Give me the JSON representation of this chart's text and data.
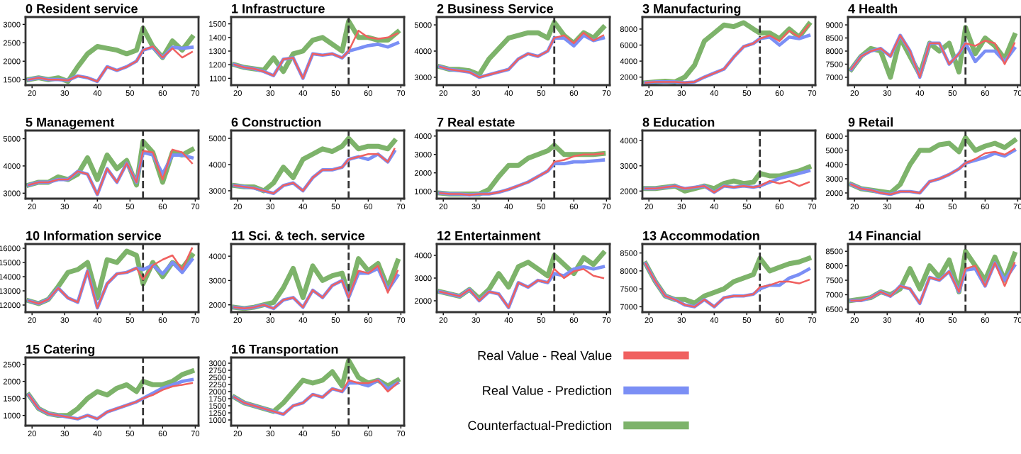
{
  "chart_data": [
    {
      "type": "line",
      "title": "0 Resident service",
      "x": [
        19,
        22,
        25,
        28,
        31,
        34,
        37,
        40,
        43,
        46,
        49,
        52,
        54,
        57,
        60,
        63,
        66,
        69
      ],
      "xlim": [
        18,
        71
      ],
      "xticks": [
        20,
        30,
        40,
        50,
        60,
        70
      ],
      "ylim": [
        1350,
        3200
      ],
      "yticks": [
        1500,
        2000,
        2500,
        3000
      ],
      "ref_lines": [
        {
          "axis": "x",
          "value": 54,
          "color": "#333333",
          "line_style": "dashed"
        }
      ],
      "series": [
        {
          "color": "#f0605f",
          "values": [
            1500,
            1550,
            1500,
            1500,
            1480,
            1600,
            1550,
            1450,
            1850,
            1750,
            1850,
            2000,
            2300,
            2400,
            2100,
            2350,
            2100,
            2250
          ]
        },
        {
          "color": "#7b8ff5",
          "values": [
            1500,
            1550,
            1500,
            1500,
            1480,
            1600,
            1550,
            1450,
            1850,
            1750,
            1850,
            2000,
            2300,
            2380,
            2100,
            2380,
            2350,
            2380
          ]
        },
        {
          "color": "#7db36a",
          "values": [
            1500,
            1550,
            1500,
            1550,
            1450,
            1850,
            2200,
            2400,
            2350,
            2300,
            2200,
            2300,
            2900,
            2400,
            2100,
            2550,
            2300,
            2650
          ]
        }
      ]
    },
    {
      "type": "line",
      "title": "1 Infrastructure",
      "x": [
        19,
        22,
        25,
        28,
        31,
        34,
        37,
        40,
        43,
        46,
        49,
        52,
        54,
        57,
        60,
        63,
        66,
        69
      ],
      "xlim": [
        18,
        71
      ],
      "xticks": [
        20,
        30,
        40,
        50,
        60,
        70
      ],
      "ylim": [
        1050,
        1550
      ],
      "yticks": [
        1100,
        1200,
        1300,
        1400,
        1500
      ],
      "ref_lines": [
        {
          "axis": "x",
          "value": 54,
          "color": "#333333",
          "line_style": "dashed"
        }
      ],
      "series": [
        {
          "color": "#f0605f",
          "values": [
            1200,
            1180,
            1170,
            1150,
            1120,
            1240,
            1250,
            1100,
            1280,
            1270,
            1280,
            1250,
            1300,
            1450,
            1400,
            1390,
            1400,
            1430
          ]
        },
        {
          "color": "#7b8ff5",
          "values": [
            1200,
            1180,
            1170,
            1150,
            1120,
            1240,
            1250,
            1100,
            1280,
            1270,
            1280,
            1250,
            1300,
            1320,
            1340,
            1350,
            1330,
            1360
          ]
        },
        {
          "color": "#7db36a",
          "values": [
            1200,
            1180,
            1170,
            1160,
            1250,
            1150,
            1280,
            1300,
            1380,
            1400,
            1350,
            1300,
            1520,
            1400,
            1400,
            1380,
            1380,
            1440
          ]
        }
      ]
    },
    {
      "type": "line",
      "title": "2 Business Service",
      "x": [
        19,
        22,
        25,
        28,
        31,
        34,
        37,
        40,
        43,
        46,
        49,
        52,
        54,
        57,
        60,
        63,
        66,
        69
      ],
      "xlim": [
        18,
        71
      ],
      "xticks": [
        20,
        30,
        40,
        50,
        60,
        70
      ],
      "ylim": [
        2700,
        5300
      ],
      "yticks": [
        3000,
        4000,
        5000
      ],
      "ref_lines": [
        {
          "axis": "x",
          "value": 54,
          "color": "#333333",
          "line_style": "dashed"
        }
      ],
      "series": [
        {
          "color": "#f0605f",
          "values": [
            3400,
            3300,
            3250,
            3200,
            3000,
            3100,
            3200,
            3300,
            3700,
            3900,
            3800,
            4000,
            4500,
            4600,
            4300,
            4700,
            4400,
            4600
          ]
        },
        {
          "color": "#7b8ff5",
          "values": [
            3400,
            3300,
            3250,
            3200,
            3000,
            3100,
            3200,
            3300,
            3700,
            3900,
            3800,
            4000,
            4500,
            4500,
            4200,
            4600,
            4400,
            4500
          ]
        },
        {
          "color": "#7db36a",
          "values": [
            3400,
            3300,
            3300,
            3250,
            3100,
            3700,
            4100,
            4500,
            4600,
            4700,
            4700,
            4500,
            5100,
            4600,
            4300,
            4700,
            4500,
            4900
          ]
        }
      ]
    },
    {
      "type": "line",
      "title": "3 Manufacturing",
      "x": [
        19,
        22,
        25,
        28,
        31,
        34,
        37,
        40,
        43,
        46,
        49,
        52,
        54,
        57,
        60,
        63,
        66,
        69
      ],
      "xlim": [
        18,
        71
      ],
      "xticks": [
        20,
        30,
        40,
        50,
        60,
        70
      ],
      "ylim": [
        1000,
        9500
      ],
      "yticks": [
        2000,
        4000,
        6000,
        8000
      ],
      "ref_lines": [
        {
          "axis": "x",
          "value": 54,
          "color": "#333333",
          "line_style": "dashed"
        }
      ],
      "series": [
        {
          "color": "#f0605f",
          "values": [
            1300,
            1400,
            1400,
            1400,
            1300,
            1400,
            2000,
            2500,
            3000,
            4500,
            5800,
            6200,
            6800,
            7200,
            6500,
            7800,
            7000,
            8500
          ]
        },
        {
          "color": "#7b8ff5",
          "values": [
            1300,
            1400,
            1400,
            1400,
            1300,
            1400,
            2000,
            2500,
            3000,
            4500,
            5800,
            6200,
            6800,
            7000,
            6000,
            7000,
            6800,
            7200
          ]
        },
        {
          "color": "#7db36a",
          "values": [
            1300,
            1400,
            1500,
            1400,
            2000,
            3500,
            6500,
            7500,
            8500,
            8300,
            8800,
            8000,
            7500,
            7500,
            6800,
            8000,
            7000,
            8600
          ]
        }
      ]
    },
    {
      "type": "line",
      "title": "4 Health",
      "x": [
        19,
        22,
        25,
        28,
        31,
        34,
        37,
        40,
        43,
        46,
        49,
        52,
        54,
        57,
        60,
        63,
        66,
        69
      ],
      "xlim": [
        18,
        71
      ],
      "xticks": [
        20,
        30,
        40,
        50,
        60,
        70
      ],
      "ylim": [
        6700,
        9300
      ],
      "yticks": [
        7000,
        7500,
        8000,
        8500,
        9000
      ],
      "ref_lines": [
        {
          "axis": "x",
          "value": 54,
          "color": "#333333",
          "line_style": "dashed"
        }
      ],
      "series": [
        {
          "color": "#f0605f",
          "values": [
            7300,
            7800,
            8000,
            8100,
            7800,
            8600,
            8000,
            7000,
            8300,
            8300,
            7500,
            7900,
            8300,
            8200,
            8400,
            8300,
            7500,
            8300
          ]
        },
        {
          "color": "#7b8ff5",
          "values": [
            7300,
            7800,
            8000,
            8100,
            7800,
            8600,
            8000,
            7000,
            8300,
            8300,
            7500,
            7900,
            8300,
            7600,
            8000,
            8000,
            7600,
            8100
          ]
        },
        {
          "color": "#7db36a",
          "values": [
            7300,
            7800,
            8100,
            8000,
            7000,
            8500,
            7800,
            7100,
            8300,
            8000,
            8300,
            7200,
            8900,
            7900,
            8500,
            8200,
            7700,
            8600
          ]
        }
      ]
    },
    {
      "type": "line",
      "title": "5 Management",
      "x": [
        19,
        22,
        25,
        28,
        31,
        34,
        37,
        40,
        43,
        46,
        49,
        52,
        54,
        57,
        60,
        63,
        66,
        69
      ],
      "xlim": [
        18,
        71
      ],
      "xticks": [
        20,
        30,
        40,
        50,
        60,
        70
      ],
      "ylim": [
        2800,
        5300
      ],
      "yticks": [
        3000,
        4000,
        5000
      ],
      "ref_lines": [
        {
          "axis": "x",
          "value": 54,
          "color": "#333333",
          "line_style": "dashed"
        }
      ],
      "series": [
        {
          "color": "#f0605f",
          "values": [
            3300,
            3400,
            3400,
            3500,
            3500,
            3800,
            3700,
            2950,
            3900,
            3400,
            4100,
            3400,
            4550,
            4500,
            3500,
            4600,
            4500,
            4100
          ]
        },
        {
          "color": "#7b8ff5",
          "values": [
            3300,
            3400,
            3400,
            3500,
            3500,
            3800,
            3700,
            2950,
            3900,
            3400,
            4100,
            3400,
            4500,
            4400,
            3700,
            4400,
            4400,
            4300
          ]
        },
        {
          "color": "#7db36a",
          "values": [
            3300,
            3400,
            3400,
            3600,
            3500,
            3700,
            4300,
            3500,
            4400,
            3900,
            4200,
            3300,
            4900,
            4500,
            3400,
            4500,
            4400,
            4600
          ]
        }
      ]
    },
    {
      "type": "line",
      "title": "6 Construction",
      "x": [
        19,
        22,
        25,
        28,
        31,
        34,
        37,
        40,
        43,
        46,
        49,
        52,
        54,
        57,
        60,
        63,
        66,
        68
      ],
      "xlim": [
        18,
        71
      ],
      "xticks": [
        20,
        30,
        40,
        50,
        60,
        70
      ],
      "ylim": [
        2700,
        5300
      ],
      "yticks": [
        3000,
        4000,
        5000
      ],
      "ref_lines": [
        {
          "axis": "x",
          "value": 54,
          "color": "#333333",
          "line_style": "dashed"
        }
      ],
      "series": [
        {
          "color": "#f0605f",
          "values": [
            3200,
            3150,
            3100,
            3000,
            2900,
            3200,
            3300,
            3000,
            3500,
            3800,
            3800,
            3900,
            4200,
            4300,
            4400,
            4400,
            4100,
            4600
          ]
        },
        {
          "color": "#7b8ff5",
          "values": [
            3200,
            3150,
            3100,
            3000,
            2900,
            3200,
            3300,
            3000,
            3500,
            3800,
            3800,
            3900,
            4200,
            4300,
            4200,
            4400,
            4100,
            4500
          ]
        },
        {
          "color": "#7db36a",
          "values": [
            3200,
            3150,
            3150,
            3000,
            3300,
            3900,
            3500,
            4200,
            4400,
            4600,
            4500,
            4700,
            5000,
            4600,
            4700,
            4700,
            4600,
            4900
          ]
        }
      ]
    },
    {
      "type": "line",
      "title": "7 Real estate",
      "x": [
        19,
        22,
        25,
        28,
        31,
        34,
        37,
        40,
        43,
        46,
        49,
        52,
        54,
        57,
        60,
        63,
        66,
        69
      ],
      "xlim": [
        18,
        71
      ],
      "xticks": [
        20,
        30,
        40,
        50,
        60,
        70
      ],
      "ylim": [
        600,
        4300
      ],
      "yticks": [
        1000,
        2000,
        3000,
        4000
      ],
      "ref_lines": [
        {
          "axis": "x",
          "value": 54,
          "color": "#333333",
          "line_style": "dashed"
        }
      ],
      "series": [
        {
          "color": "#f0605f",
          "values": [
            900,
            850,
            850,
            800,
            850,
            850,
            950,
            1100,
            1300,
            1500,
            1800,
            2100,
            2600,
            2700,
            2900,
            3000,
            3000,
            3050
          ]
        },
        {
          "color": "#7b8ff5",
          "values": [
            900,
            850,
            850,
            800,
            850,
            850,
            950,
            1100,
            1300,
            1500,
            1800,
            2100,
            2500,
            2500,
            2600,
            2600,
            2650,
            2700
          ]
        },
        {
          "color": "#7db36a",
          "values": [
            900,
            850,
            850,
            850,
            850,
            1100,
            1800,
            2400,
            2400,
            2800,
            3000,
            3200,
            3500,
            3000,
            3000,
            3000,
            3000,
            3050
          ]
        }
      ]
    },
    {
      "type": "line",
      "title": "8 Education",
      "x": [
        19,
        22,
        25,
        28,
        31,
        34,
        37,
        40,
        43,
        46,
        49,
        52,
        54,
        57,
        60,
        63,
        66,
        69
      ],
      "xlim": [
        18,
        71
      ],
      "xticks": [
        20,
        30,
        40,
        50,
        60,
        70
      ],
      "ylim": [
        1700,
        4400
      ],
      "yticks": [
        2000,
        3000,
        4000
      ],
      "ref_lines": [
        {
          "axis": "x",
          "value": 54,
          "color": "#333333",
          "line_style": "dashed"
        }
      ],
      "series": [
        {
          "color": "#f0605f",
          "values": [
            2100,
            2100,
            2150,
            2200,
            2100,
            2150,
            2200,
            1950,
            2200,
            2150,
            2200,
            2150,
            2200,
            2400,
            2300,
            2400,
            2200,
            2350
          ]
        },
        {
          "color": "#7b8ff5",
          "values": [
            2100,
            2100,
            2150,
            2200,
            2100,
            2150,
            2200,
            1950,
            2200,
            2150,
            2200,
            2150,
            2200,
            2350,
            2500,
            2600,
            2700,
            2800
          ]
        },
        {
          "color": "#7db36a",
          "values": [
            2100,
            2100,
            2150,
            2200,
            2000,
            2100,
            2200,
            2100,
            2300,
            2400,
            2300,
            2350,
            2700,
            2600,
            2600,
            2700,
            2800,
            2950
          ]
        }
      ]
    },
    {
      "type": "line",
      "title": "9 Retail",
      "x": [
        19,
        22,
        25,
        28,
        31,
        34,
        37,
        40,
        43,
        46,
        49,
        52,
        54,
        57,
        60,
        63,
        66,
        69
      ],
      "xlim": [
        18,
        71
      ],
      "xticks": [
        20,
        30,
        40,
        50,
        60,
        70
      ],
      "ylim": [
        1600,
        6400
      ],
      "yticks": [
        2000,
        3000,
        4000,
        5000,
        6000
      ],
      "ref_lines": [
        {
          "axis": "x",
          "value": 54,
          "color": "#333333",
          "line_style": "dashed"
        }
      ],
      "series": [
        {
          "color": "#f0605f",
          "values": [
            2600,
            2300,
            2200,
            2000,
            1900,
            2100,
            2100,
            2000,
            2800,
            3000,
            3300,
            3700,
            4100,
            4400,
            4800,
            4900,
            4700,
            5100
          ]
        },
        {
          "color": "#7b8ff5",
          "values": [
            2600,
            2300,
            2200,
            2000,
            1900,
            2100,
            2100,
            2000,
            2800,
            3000,
            3300,
            3700,
            4100,
            4300,
            4500,
            4800,
            4600,
            5000
          ]
        },
        {
          "color": "#7db36a",
          "values": [
            2600,
            2300,
            2200,
            2100,
            2000,
            2600,
            4000,
            5000,
            5000,
            5400,
            5500,
            4900,
            5900,
            5000,
            5300,
            5500,
            5200,
            5700
          ]
        }
      ]
    },
    {
      "type": "line",
      "title": "10 Information service",
      "x": [
        19,
        22,
        25,
        28,
        31,
        34,
        37,
        40,
        43,
        46,
        49,
        52,
        54,
        57,
        60,
        63,
        66,
        69
      ],
      "xlim": [
        18,
        71
      ],
      "xticks": [
        20,
        30,
        40,
        50,
        60,
        70
      ],
      "ylim": [
        11500,
        16300
      ],
      "yticks": [
        12000,
        13000,
        14000,
        15000,
        16000
      ],
      "ref_lines": [
        {
          "axis": "x",
          "value": 54,
          "color": "#333333",
          "line_style": "dashed"
        }
      ],
      "series": [
        {
          "color": "#f0605f",
          "values": [
            12300,
            12100,
            12400,
            13200,
            12500,
            12200,
            14400,
            11800,
            13500,
            14200,
            14300,
            14600,
            13800,
            14800,
            15200,
            15500,
            14500,
            16000
          ]
        },
        {
          "color": "#7b8ff5",
          "values": [
            12300,
            12100,
            12400,
            13200,
            12500,
            12200,
            14400,
            11800,
            13500,
            14200,
            14300,
            14600,
            14500,
            14800,
            14200,
            15000,
            14300,
            15200
          ]
        },
        {
          "color": "#7db36a",
          "values": [
            12300,
            12100,
            12400,
            13300,
            14300,
            14500,
            15000,
            12500,
            15200,
            15000,
            15800,
            15500,
            13500,
            15000,
            14000,
            15000,
            14600,
            15500
          ]
        }
      ]
    },
    {
      "type": "line",
      "title": "11 Sci. & tech. service",
      "x": [
        19,
        22,
        25,
        28,
        31,
        34,
        37,
        40,
        43,
        46,
        49,
        52,
        54,
        57,
        60,
        63,
        66,
        69
      ],
      "xlim": [
        18,
        71
      ],
      "xticks": [
        20,
        30,
        40,
        50,
        60,
        70
      ],
      "ylim": [
        1700,
        4500
      ],
      "yticks": [
        2000,
        3000,
        4000
      ],
      "ref_lines": [
        {
          "axis": "x",
          "value": 54,
          "color": "#333333",
          "line_style": "dashed"
        }
      ],
      "series": [
        {
          "color": "#f0605f",
          "values": [
            1900,
            1850,
            1900,
            2000,
            1850,
            2200,
            2300,
            1900,
            2600,
            2300,
            2800,
            3000,
            2300,
            3400,
            3300,
            3600,
            2500,
            3400
          ]
        },
        {
          "color": "#7b8ff5",
          "values": [
            1900,
            1850,
            1900,
            2000,
            1850,
            2200,
            2300,
            1900,
            2600,
            2300,
            2800,
            3000,
            2300,
            3300,
            3300,
            3500,
            2600,
            3200
          ]
        },
        {
          "color": "#7db36a",
          "values": [
            1900,
            1850,
            1900,
            2000,
            2100,
            2700,
            3500,
            2300,
            3600,
            3000,
            3200,
            3300,
            2400,
            3900,
            3400,
            3700,
            2700,
            3800
          ]
        }
      ]
    },
    {
      "type": "line",
      "title": "12 Entertainment",
      "x": [
        19,
        22,
        25,
        28,
        31,
        34,
        37,
        40,
        43,
        46,
        49,
        52,
        54,
        57,
        60,
        63,
        66,
        69
      ],
      "xlim": [
        18,
        71
      ],
      "xticks": [
        20,
        30,
        40,
        50,
        60,
        70
      ],
      "ylim": [
        1500,
        4500
      ],
      "yticks": [
        2000,
        3000,
        4000
      ],
      "ref_lines": [
        {
          "axis": "x",
          "value": 54,
          "color": "#333333",
          "line_style": "dashed"
        }
      ],
      "series": [
        {
          "color": "#f0605f",
          "values": [
            2400,
            2300,
            2200,
            2500,
            2000,
            2400,
            2300,
            1700,
            2800,
            2600,
            2900,
            2800,
            3400,
            3000,
            3300,
            3400,
            3100,
            3000
          ]
        },
        {
          "color": "#7b8ff5",
          "values": [
            2400,
            2300,
            2200,
            2500,
            2000,
            2400,
            2300,
            1700,
            2800,
            2600,
            2900,
            2800,
            3200,
            3100,
            3400,
            3500,
            3400,
            3500
          ]
        },
        {
          "color": "#7db36a",
          "values": [
            2400,
            2300,
            2200,
            2500,
            2100,
            2500,
            3200,
            2600,
            3500,
            3700,
            3400,
            3100,
            4000,
            3600,
            3200,
            3900,
            3600,
            4100
          ]
        }
      ]
    },
    {
      "type": "line",
      "title": "13 Accommodation",
      "x": [
        19,
        22,
        25,
        28,
        31,
        34,
        37,
        40,
        43,
        46,
        49,
        52,
        54,
        57,
        60,
        63,
        66,
        69
      ],
      "xlim": [
        18,
        71
      ],
      "xticks": [
        20,
        30,
        40,
        50,
        60,
        70
      ],
      "ylim": [
        6850,
        8750
      ],
      "yticks": [
        7000,
        7500,
        8000,
        8500
      ],
      "ref_lines": [
        {
          "axis": "x",
          "value": 54,
          "color": "#333333",
          "line_style": "dashed"
        }
      ],
      "series": [
        {
          "color": "#f0605f",
          "values": [
            8200,
            7700,
            7300,
            7200,
            7050,
            7000,
            7200,
            7000,
            7250,
            7300,
            7300,
            7350,
            7550,
            7600,
            7700,
            7700,
            7650,
            7750
          ]
        },
        {
          "color": "#7b8ff5",
          "values": [
            8200,
            7700,
            7300,
            7200,
            7050,
            7000,
            7200,
            7000,
            7250,
            7300,
            7300,
            7350,
            7500,
            7600,
            7600,
            7800,
            7900,
            8050
          ]
        },
        {
          "color": "#7db36a",
          "values": [
            8200,
            7700,
            7300,
            7200,
            7200,
            7100,
            7300,
            7400,
            7500,
            7700,
            7800,
            7900,
            8350,
            8000,
            8100,
            8200,
            8250,
            8350
          ]
        }
      ]
    },
    {
      "type": "line",
      "title": "14 Financial",
      "x": [
        19,
        22,
        25,
        28,
        31,
        34,
        37,
        40,
        43,
        46,
        49,
        52,
        54,
        57,
        60,
        63,
        66,
        69
      ],
      "xlim": [
        18,
        71
      ],
      "xticks": [
        20,
        30,
        40,
        50,
        60,
        70
      ],
      "ylim": [
        6400,
        8750
      ],
      "yticks": [
        6500,
        7000,
        7500,
        8000,
        8500
      ],
      "ref_lines": [
        {
          "axis": "x",
          "value": 54,
          "color": "#333333",
          "line_style": "dashed"
        }
      ],
      "series": [
        {
          "color": "#f0605f",
          "values": [
            6800,
            6800,
            6900,
            7100,
            6950,
            7300,
            7200,
            6700,
            7600,
            7500,
            7800,
            7100,
            7900,
            8000,
            7300,
            8100,
            7300,
            8100
          ]
        },
        {
          "color": "#7b8ff5",
          "values": [
            6800,
            6800,
            6900,
            7100,
            6950,
            7300,
            7200,
            6700,
            7600,
            7500,
            7800,
            7100,
            7850,
            7900,
            7300,
            8100,
            7500,
            8000
          ]
        },
        {
          "color": "#7db36a",
          "values": [
            6800,
            6850,
            6900,
            7100,
            7000,
            7200,
            7900,
            7200,
            8000,
            7600,
            8200,
            7100,
            8500,
            8000,
            7500,
            8300,
            7500,
            8400
          ]
        }
      ]
    },
    {
      "type": "line",
      "title": "15 Catering",
      "x": [
        19,
        22,
        25,
        28,
        31,
        34,
        37,
        40,
        43,
        46,
        49,
        52,
        54,
        57,
        60,
        63,
        66,
        69
      ],
      "xlim": [
        18,
        71
      ],
      "xticks": [
        20,
        30,
        40,
        50,
        60,
        70
      ],
      "ylim": [
        700,
        2700
      ],
      "yticks": [
        1000,
        1500,
        2000,
        2500
      ],
      "ref_lines": [
        {
          "axis": "x",
          "value": 54,
          "color": "#333333",
          "line_style": "dashed"
        }
      ],
      "series": [
        {
          "color": "#f0605f",
          "values": [
            1600,
            1200,
            1050,
            1000,
            950,
            900,
            1000,
            900,
            1100,
            1200,
            1300,
            1400,
            1500,
            1600,
            1750,
            1850,
            1900,
            1950
          ]
        },
        {
          "color": "#7b8ff5",
          "values": [
            1600,
            1200,
            1050,
            1000,
            950,
            900,
            1000,
            900,
            1100,
            1200,
            1300,
            1400,
            1500,
            1650,
            1800,
            1900,
            2000,
            2050
          ]
        },
        {
          "color": "#7db36a",
          "values": [
            1600,
            1200,
            1050,
            1000,
            1000,
            1200,
            1500,
            1700,
            1600,
            1800,
            1900,
            1700,
            2000,
            1900,
            1900,
            2000,
            2200,
            2300
          ]
        }
      ]
    },
    {
      "type": "line",
      "title": "16 Transportation",
      "x": [
        19,
        22,
        25,
        28,
        31,
        34,
        37,
        40,
        43,
        46,
        49,
        52,
        54,
        57,
        60,
        63,
        66,
        69
      ],
      "xlim": [
        18,
        71
      ],
      "xticks": [
        20,
        30,
        40,
        50,
        60,
        70
      ],
      "ylim": [
        800,
        3200
      ],
      "yticks": [
        1000,
        1250,
        1500,
        1750,
        2000,
        2250,
        2500,
        2750,
        3000
      ],
      "ref_lines": [
        {
          "axis": "x",
          "value": 54,
          "color": "#333333",
          "line_style": "dashed"
        }
      ],
      "legend": "right",
      "series": [
        {
          "name": "Real Value - Real Value",
          "color": "#f0605f",
          "values": [
            1800,
            1600,
            1500,
            1400,
            1300,
            1200,
            1500,
            1600,
            1900,
            1800,
            2100,
            2000,
            2400,
            2300,
            2300,
            2400,
            2000,
            2300
          ]
        },
        {
          "name": "Real Value - Prediction",
          "color": "#7b8ff5",
          "values": [
            1800,
            1600,
            1500,
            1400,
            1300,
            1200,
            1500,
            1600,
            1900,
            1800,
            2100,
            2000,
            2300,
            2300,
            2200,
            2400,
            2100,
            2300
          ]
        },
        {
          "name": "Counterfactual-Prediction",
          "color": "#7db36a",
          "values": [
            1800,
            1600,
            1500,
            1400,
            1300,
            1600,
            2000,
            2400,
            2300,
            2400,
            2700,
            2200,
            3100,
            2500,
            2300,
            2400,
            2200,
            2400
          ]
        }
      ]
    }
  ]
}
